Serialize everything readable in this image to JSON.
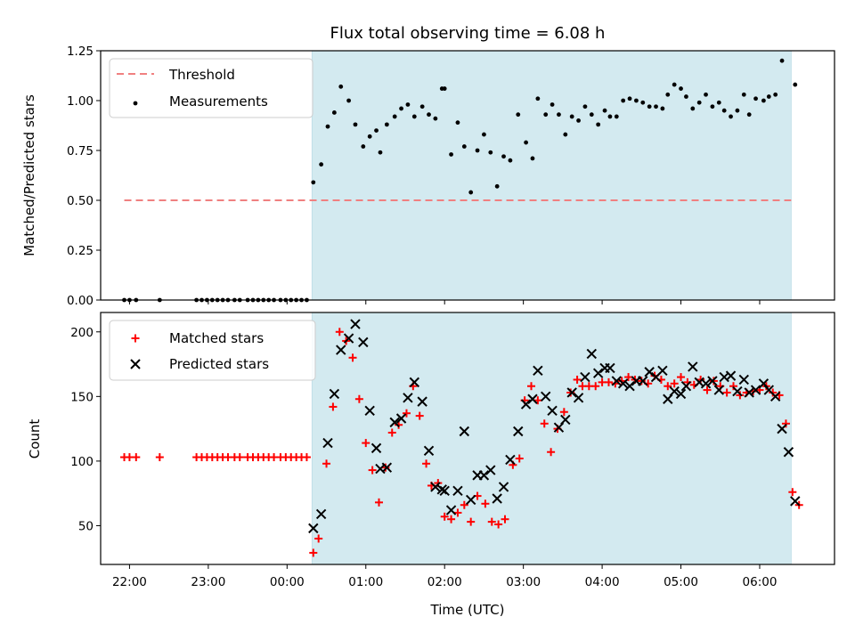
{
  "chart_data": {
    "type": "scatter",
    "title": "Flux total observing time = 6.08 h",
    "xlabel": "Time (UTC)",
    "x_ticks": [
      "22:00",
      "23:00",
      "00:00",
      "01:00",
      "02:00",
      "03:00",
      "04:00",
      "05:00",
      "06:00"
    ],
    "x_range": [
      "21:38",
      "06:57"
    ],
    "observing_window": [
      "00:19",
      "06:24"
    ],
    "colors": {
      "shade": "#d3eaf0",
      "threshold": "#f08080",
      "matched": "#ff0000",
      "predicted": "#000000",
      "measurements": "#000000"
    },
    "panels": [
      {
        "ylabel": "Matched/Predicted stars",
        "ylim": [
          0,
          1.25
        ],
        "y_ticks": [
          "0.00",
          "0.25",
          "0.50",
          "0.75",
          "1.00",
          "1.25"
        ],
        "legend": {
          "placement": "upper-left",
          "entries": [
            "Threshold",
            "Measurements"
          ]
        },
        "threshold": {
          "name": "Threshold",
          "value": 0.5,
          "x_start": "21:56",
          "x_end": "06:24"
        },
        "series": [
          {
            "name": "Measurements",
            "marker": "dot",
            "x": [
              "21:56",
              "22:00",
              "22:05",
              "22:23",
              "22:51",
              "22:55",
              "22:59",
              "23:03",
              "23:07",
              "23:11",
              "23:15",
              "23:20",
              "23:24",
              "23:30",
              "23:34",
              "23:38",
              "23:42",
              "23:46",
              "23:50",
              "23:55",
              "23:59",
              "00:03",
              "00:07",
              "00:11",
              "00:15",
              "00:20",
              "00:26",
              "00:31",
              "00:36",
              "00:41",
              "00:47",
              "00:52",
              "00:58",
              "01:03",
              "01:08",
              "01:11",
              "01:16",
              "01:22",
              "01:27",
              "01:32",
              "01:37",
              "01:43",
              "01:48",
              "01:53",
              "01:58",
              "02:00",
              "02:05",
              "02:10",
              "02:15",
              "02:20",
              "02:25",
              "02:30",
              "02:35",
              "02:40",
              "02:45",
              "02:50",
              "02:56",
              "03:02",
              "03:07",
              "03:11",
              "03:17",
              "03:22",
              "03:27",
              "03:32",
              "03:37",
              "03:42",
              "03:47",
              "03:52",
              "03:57",
              "04:02",
              "04:06",
              "04:11",
              "04:16",
              "04:21",
              "04:26",
              "04:31",
              "04:36",
              "04:41",
              "04:46",
              "04:50",
              "04:55",
              "05:00",
              "05:04",
              "05:09",
              "05:14",
              "05:19",
              "05:24",
              "05:29",
              "05:33",
              "05:38",
              "05:43",
              "05:48",
              "05:52",
              "05:57",
              "06:03",
              "06:07",
              "06:12",
              "06:17",
              "06:27"
            ],
            "y": [
              0,
              0,
              0,
              0,
              0,
              0,
              0,
              0,
              0,
              0,
              0,
              0,
              0,
              0,
              0,
              0,
              0,
              0,
              0,
              0,
              0,
              0,
              0,
              0,
              0,
              0.59,
              0.68,
              0.87,
              0.94,
              1.07,
              1.0,
              0.88,
              0.77,
              0.82,
              0.85,
              0.74,
              0.88,
              0.92,
              0.96,
              0.98,
              0.92,
              0.97,
              0.93,
              0.91,
              1.06,
              1.06,
              0.73,
              0.89,
              0.77,
              0.54,
              0.75,
              0.83,
              0.74,
              0.57,
              0.72,
              0.7,
              0.93,
              0.79,
              0.71,
              1.01,
              0.93,
              0.98,
              0.93,
              0.83,
              0.92,
              0.9,
              0.97,
              0.93,
              0.88,
              0.95,
              0.92,
              0.92,
              1.0,
              1.01,
              1.0,
              0.99,
              0.97,
              0.97,
              0.96,
              1.03,
              1.08,
              1.06,
              1.02,
              0.96,
              0.99,
              1.03,
              0.97,
              0.99,
              0.95,
              0.92,
              0.95,
              1.03,
              0.93,
              1.01,
              1.0,
              1.02,
              1.03,
              1.2,
              1.08
            ]
          }
        ]
      },
      {
        "ylabel": "Count",
        "ylim": [
          20,
          215
        ],
        "y_ticks": [
          "50",
          "100",
          "150",
          "200"
        ],
        "legend": {
          "placement": "upper-left",
          "entries": [
            "Matched stars",
            "Predicted stars"
          ]
        },
        "series": [
          {
            "name": "Matched stars",
            "marker": "plus",
            "x": [
              "21:56",
              "22:00",
              "22:05",
              "22:23",
              "22:51",
              "22:55",
              "22:59",
              "23:03",
              "23:07",
              "23:11",
              "23:15",
              "23:20",
              "23:24",
              "23:30",
              "23:34",
              "23:38",
              "23:42",
              "23:46",
              "23:50",
              "23:55",
              "23:59",
              "00:03",
              "00:07",
              "00:11",
              "00:15",
              "00:20",
              "00:24",
              "00:30",
              "00:35",
              "00:40",
              "00:45",
              "00:50",
              "00:55",
              "01:00",
              "01:05",
              "01:10",
              "01:15",
              "01:20",
              "01:25",
              "01:31",
              "01:36",
              "01:41",
              "01:46",
              "01:50",
              "01:55",
              "02:00",
              "02:05",
              "02:10",
              "02:15",
              "02:20",
              "02:25",
              "02:31",
              "02:36",
              "02:41",
              "02:46",
              "02:52",
              "02:57",
              "03:01",
              "03:06",
              "03:11",
              "03:16",
              "03:21",
              "03:26",
              "03:31",
              "03:36",
              "03:41",
              "03:45",
              "03:50",
              "03:55",
              "04:00",
              "04:05",
              "04:10",
              "04:15",
              "04:20",
              "04:25",
              "04:30",
              "04:35",
              "04:40",
              "04:45",
              "04:50",
              "04:55",
              "05:00",
              "05:05",
              "05:10",
              "05:15",
              "05:20",
              "05:25",
              "05:30",
              "05:35",
              "05:40",
              "05:45",
              "05:50",
              "05:55",
              "06:00",
              "06:05",
              "06:10",
              "06:15",
              "06:20",
              "06:25",
              "06:30"
            ],
            "y": [
              103,
              103,
              103,
              103,
              103,
              103,
              103,
              103,
              103,
              103,
              103,
              103,
              103,
              103,
              103,
              103,
              103,
              103,
              103,
              103,
              103,
              103,
              103,
              103,
              103,
              29,
              40,
              98,
              142,
              200,
              193,
              180,
              148,
              114,
              93,
              68,
              95,
              122,
              128,
              137,
              158,
              135,
              98,
              81,
              83,
              57,
              55,
              60,
              66,
              53,
              73,
              67,
              53,
              51,
              55,
              97,
              102,
              147,
              158,
              147,
              129,
              107,
              125,
              138,
              153,
              163,
              158,
              158,
              158,
              161,
              161,
              160,
              162,
              165,
              163,
              162,
              160,
              166,
              163,
              158,
              160,
              165,
              161,
              159,
              163,
              155,
              162,
              158,
              153,
              158,
              151,
              153,
              154,
              155,
              158,
              153,
              151,
              129,
              76,
              66
            ]
          },
          {
            "name": "Predicted stars",
            "marker": "x",
            "x": [
              "00:20",
              "00:26",
              "00:31",
              "00:36",
              "00:41",
              "00:47",
              "00:52",
              "00:58",
              "01:03",
              "01:08",
              "01:11",
              "01:16",
              "01:22",
              "01:27",
              "01:32",
              "01:37",
              "01:43",
              "01:48",
              "01:53",
              "01:58",
              "02:00",
              "02:05",
              "02:10",
              "02:15",
              "02:20",
              "02:25",
              "02:30",
              "02:35",
              "02:40",
              "02:45",
              "02:50",
              "02:56",
              "03:02",
              "03:07",
              "03:11",
              "03:17",
              "03:22",
              "03:27",
              "03:32",
              "03:37",
              "03:42",
              "03:47",
              "03:52",
              "03:57",
              "04:02",
              "04:06",
              "04:11",
              "04:16",
              "04:21",
              "04:26",
              "04:31",
              "04:36",
              "04:41",
              "04:46",
              "04:50",
              "04:55",
              "05:00",
              "05:04",
              "05:09",
              "05:14",
              "05:19",
              "05:24",
              "05:29",
              "05:33",
              "05:38",
              "05:43",
              "05:48",
              "05:52",
              "05:57",
              "06:03",
              "06:07",
              "06:12",
              "06:17",
              "06:22",
              "06:27"
            ],
            "y": [
              48,
              59,
              114,
              152,
              186,
              195,
              206,
              192,
              139,
              110,
              94,
              95,
              130,
              133,
              149,
              161,
              146,
              108,
              80,
              78,
              77,
              62,
              77,
              123,
              70,
              89,
              89,
              93,
              71,
              80,
              101,
              123,
              144,
              148,
              170,
              150,
              139,
              126,
              132,
              153,
              149,
              165,
              183,
              168,
              172,
              172,
              162,
              160,
              158,
              162,
              162,
              169,
              165,
              170,
              148,
              154,
              152,
              158,
              173,
              161,
              160,
              162,
              155,
              165,
              166,
              154,
              163,
              153,
              155,
              160,
              155,
              150,
              125,
              107,
              69
            ]
          }
        ]
      }
    ]
  }
}
